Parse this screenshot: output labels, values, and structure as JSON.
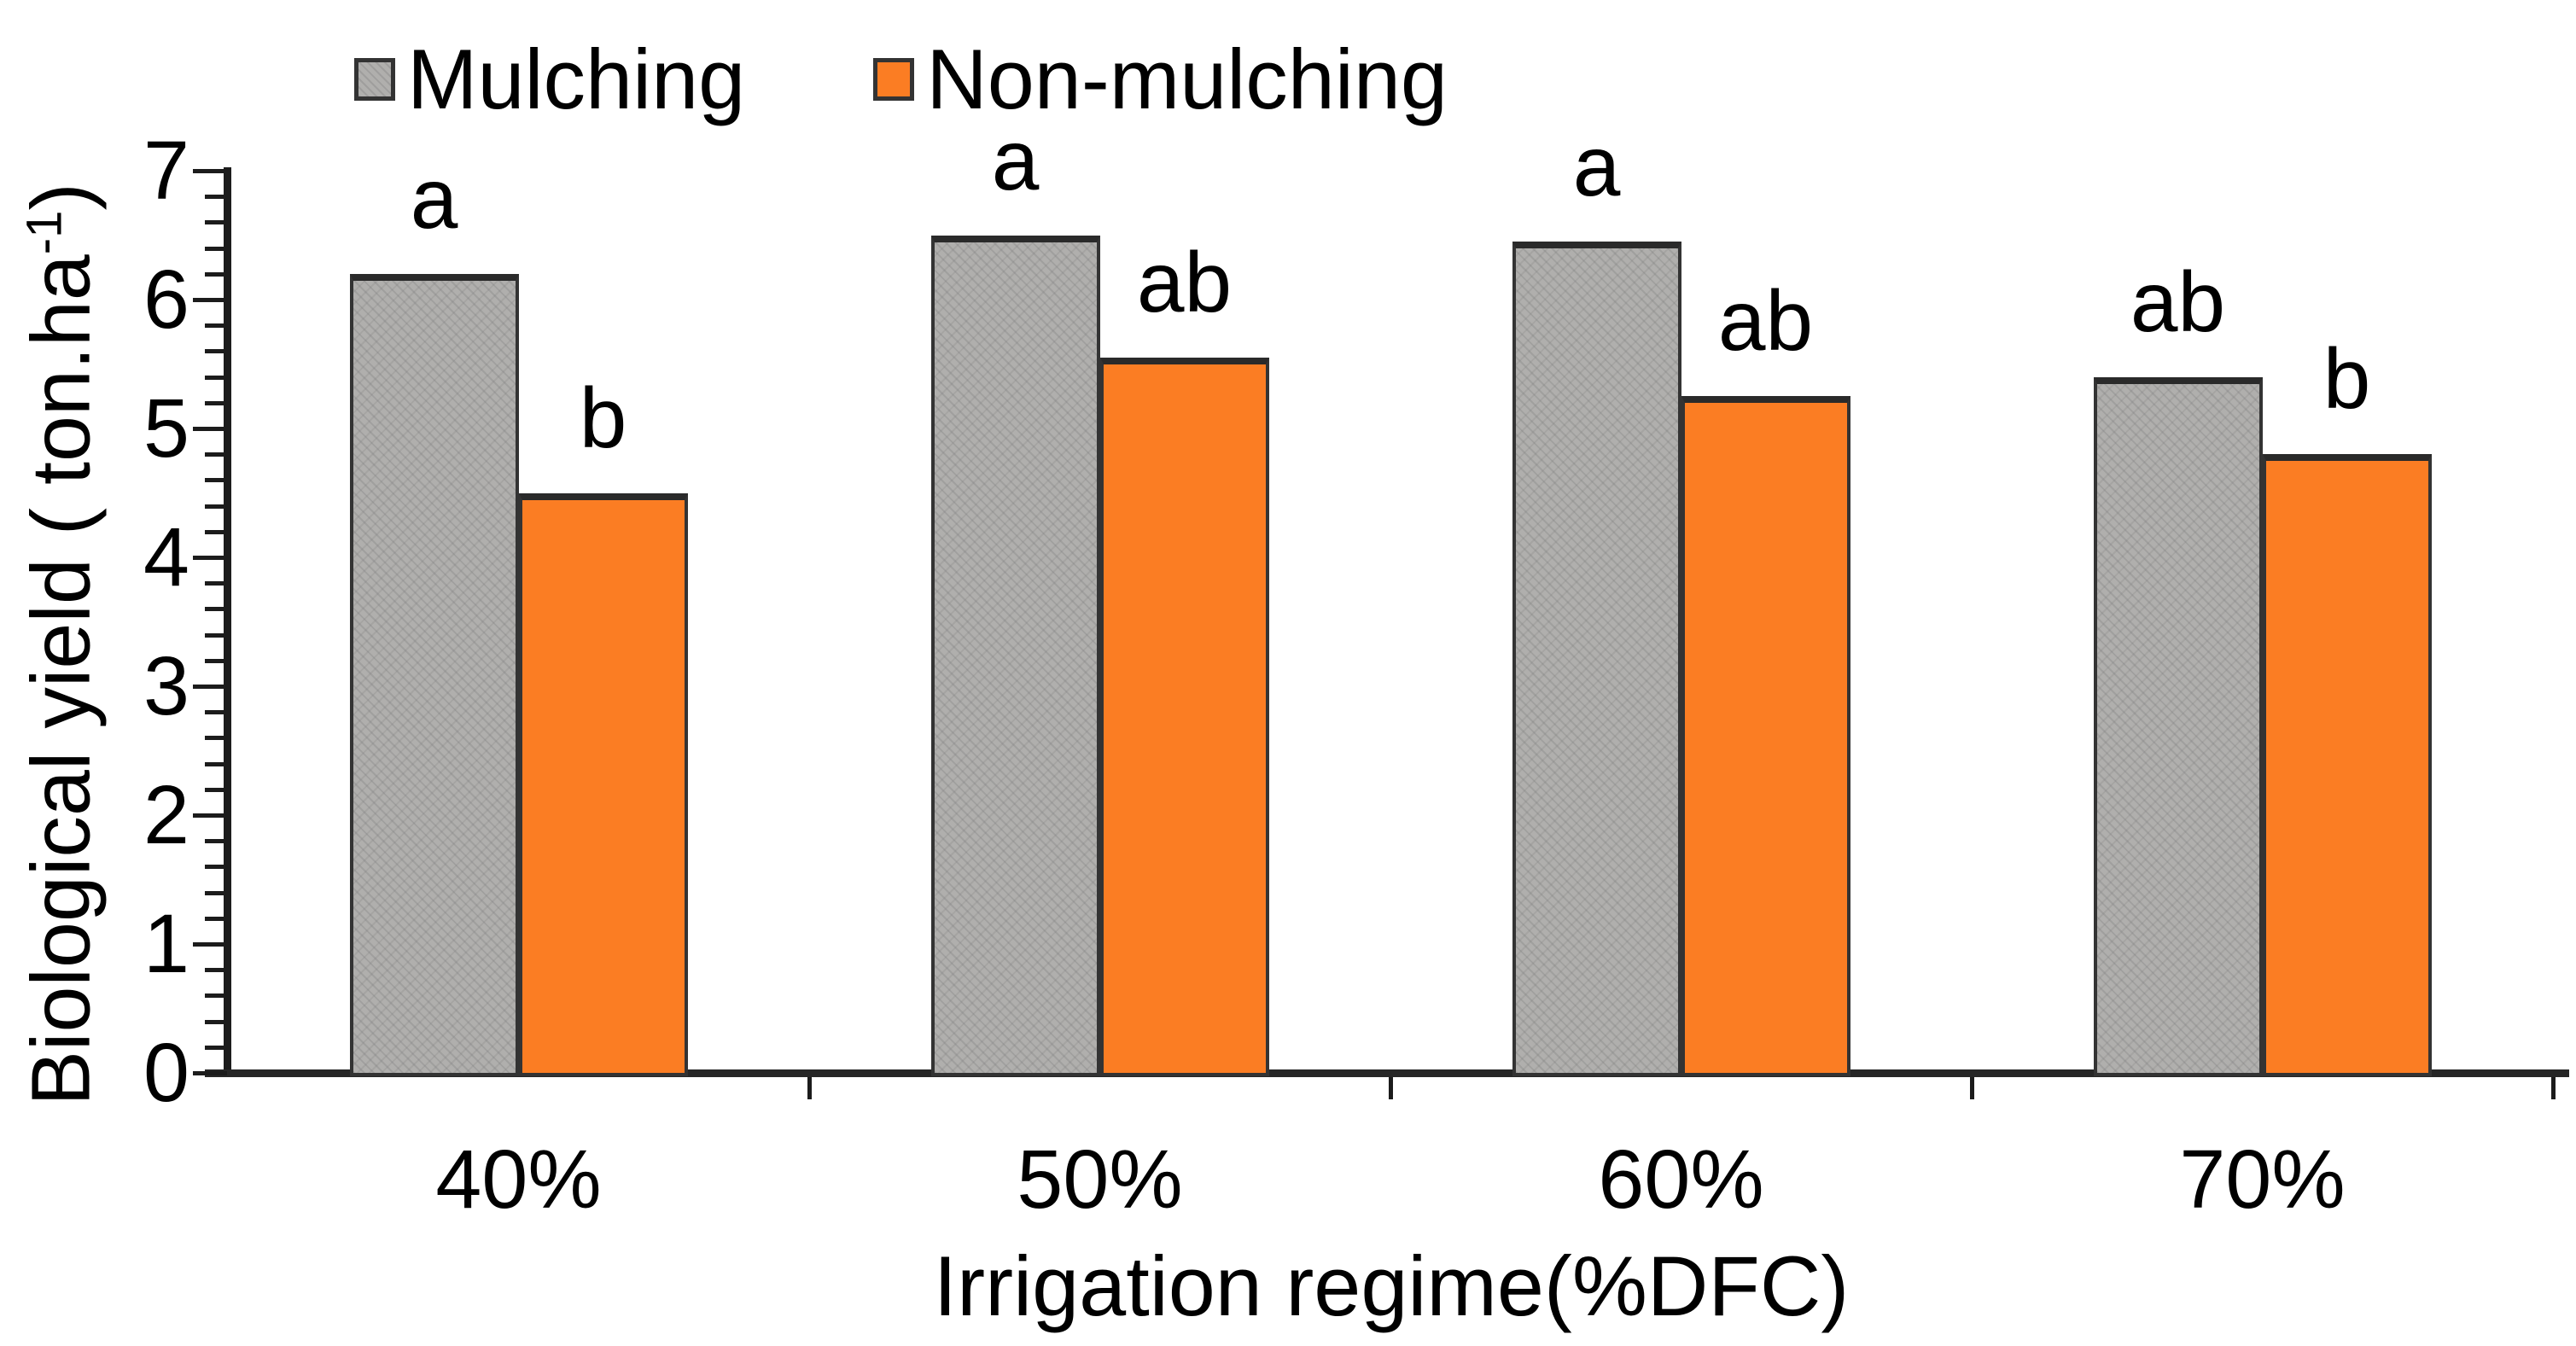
{
  "chart_data": {
    "type": "bar",
    "categories": [
      "40%",
      "50%",
      "60%",
      "70%"
    ],
    "series": [
      {
        "name": "Mulching",
        "color": "#b0afad",
        "values": [
          6.2,
          6.5,
          6.45,
          5.4
        ],
        "sig_letters": [
          "a",
          "a",
          "a",
          "ab"
        ]
      },
      {
        "name": "Non-mulching",
        "color": "#fb7d23",
        "values": [
          4.5,
          5.55,
          5.25,
          4.8
        ],
        "sig_letters": [
          "b",
          "ab",
          "ab",
          "b"
        ]
      }
    ],
    "xlabel": "Irrigation regime(%DFC)",
    "ylabel": "Biological yield ( ton.ha⁻¹)",
    "ylabel_parts": {
      "prefix": "Biological yield ( ton.ha",
      "superscript": "-1",
      "suffix": ")"
    },
    "ylim": [
      0,
      7
    ],
    "ytick_values": [
      "0",
      "1",
      "2",
      "3",
      "4",
      "5",
      "6",
      "7"
    ],
    "ytick_step": 1,
    "yminor_step": 0.2,
    "grid": false,
    "legend_position": "top",
    "bar_outline_color": "#333333",
    "axis_color": "#1c1c1c",
    "significance_note_colors": {
      "text": "#000000"
    }
  }
}
